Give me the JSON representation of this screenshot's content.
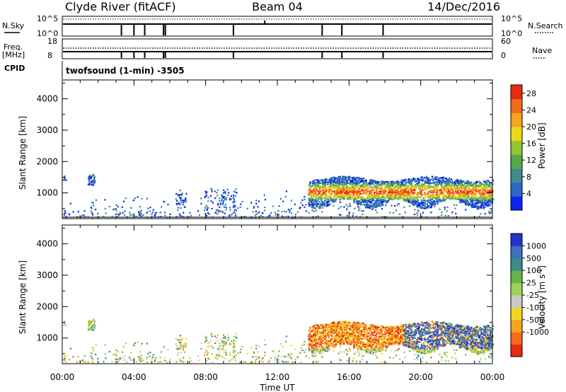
{
  "header": {
    "station": "Clyde River (fitACF)",
    "beam": "Beam 04",
    "date": "14/Dec/2016"
  },
  "params": {
    "nsky_label": "N.Sky",
    "nsky_top": "10^5",
    "nsky_bottom": "10^0",
    "nsearch_label": "N.Search",
    "nsearch_top": "10^5",
    "nsearch_bottom": "10^0",
    "freq_label": "Freq.",
    "freq_unit": "[MHz]",
    "freq_top": "18",
    "freq_bottom": "8",
    "nave_label": "Nave",
    "nave_top": "60",
    "nave_bottom": "0",
    "cpid_label": "CPID",
    "cpid_value": "twofsound (1-min) -3505",
    "gaps_hours": [
      3.3,
      4.0,
      4.6,
      5.65,
      5.75,
      9.55,
      14.5,
      15.6,
      17.9
    ]
  },
  "chart_data": [
    {
      "type": "heatmap",
      "name": "power",
      "ylabel": "Slant Range [km]",
      "y_ticks": [
        "1000",
        "2000",
        "3000",
        "4000"
      ],
      "y_tick_values": [
        1000,
        2000,
        3000,
        4000
      ],
      "ylim": [
        180,
        4600
      ],
      "xlim": [
        0,
        24
      ],
      "colorbar_label": "Power [dB]",
      "colorbar_ticks": [
        "4",
        "8",
        "12",
        "16",
        "20",
        "24",
        "28"
      ],
      "colorbar_tick_values": [
        4,
        8,
        12,
        16,
        20,
        24,
        28
      ],
      "colorbar_range": [
        0,
        30
      ],
      "colorbar_colors": [
        "#0b24f0",
        "#2b66c9",
        "#3f8a8a",
        "#55a84a",
        "#8ec834",
        "#ecd918",
        "#f5a41f",
        "#f26a1a",
        "#e72b12"
      ],
      "data_summary": "Sparse scatter 00:00-13:30 below 1500 km; dense band 700-1500 km from 13:45 to 24:00, peak power (red) near 1000 km"
    },
    {
      "type": "heatmap",
      "name": "velocity",
      "ylabel": "Slant Range [km]",
      "y_ticks": [
        "1000",
        "2000",
        "3000",
        "4000"
      ],
      "y_tick_values": [
        1000,
        2000,
        3000,
        4000
      ],
      "ylim": [
        180,
        4600
      ],
      "xlim": [
        0,
        24
      ],
      "xlabel": "Time UT",
      "x_ticks": [
        "00:00",
        "04:00",
        "08:00",
        "12:00",
        "16:00",
        "20:00",
        "00:00"
      ],
      "x_tick_values": [
        0,
        4,
        8,
        12,
        16,
        20,
        24
      ],
      "colorbar_label": "Velocity [m s^-1]",
      "colorbar_ticks": [
        "1000",
        "500",
        "100",
        "25",
        "-25",
        "-100",
        "-500",
        "-1000"
      ],
      "colorbar_colors": [
        "#2233cc",
        "#3f6fc0",
        "#3e8a8a",
        "#62b546",
        "#9fd25a",
        "#c8c8c8",
        "#f0d722",
        "#f4a51f",
        "#f26c19",
        "#e72812"
      ],
      "data_summary": "Sparse scatter 00:00-13:30; dense band 700-1600 km from 13:45 to 24:00, negative (orange/red) before 19:00, positive (blue) after"
    }
  ]
}
